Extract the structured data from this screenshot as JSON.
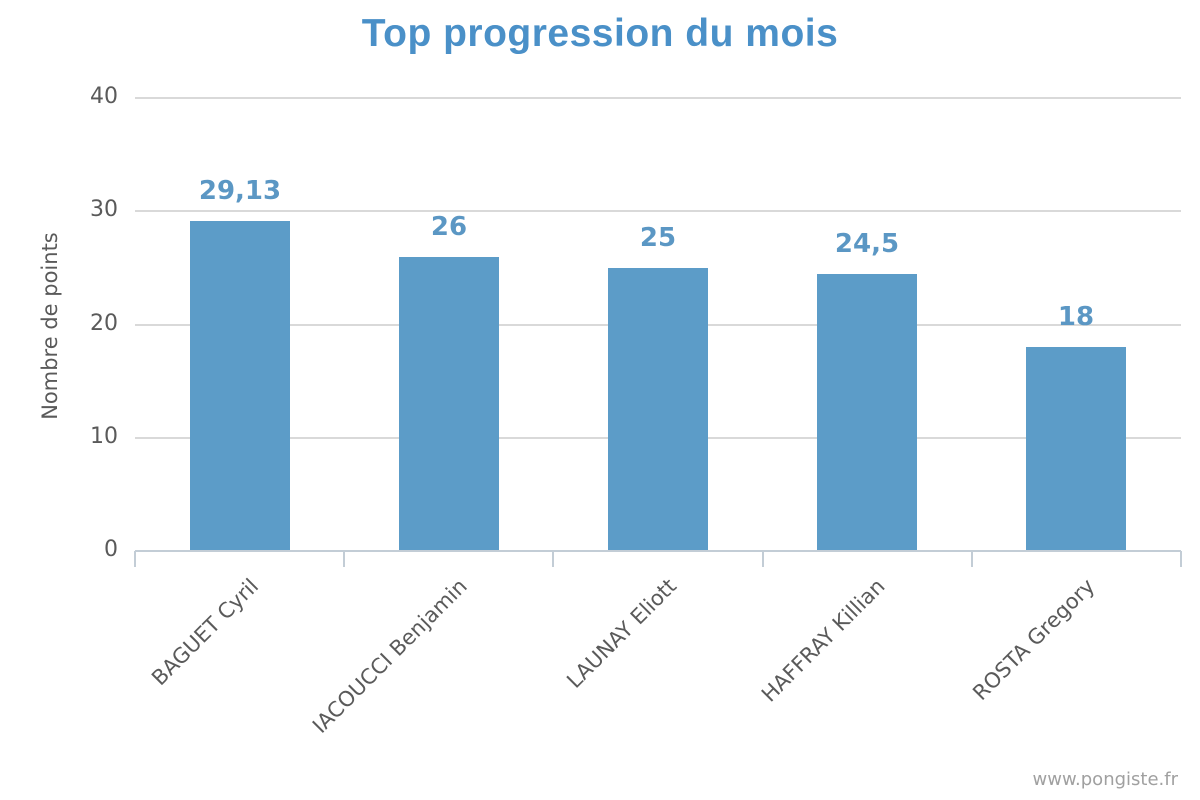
{
  "chart_data": {
    "type": "bar",
    "title": "Top progression du mois",
    "xlabel": "",
    "ylabel": "Nombre de points",
    "categories": [
      "BAGUET Cyril",
      "IACOUCCI Benjamin",
      "LAUNAY Eliott",
      "HAFFRAY Killian",
      "ROSTA Gregory"
    ],
    "values": [
      29.13,
      26,
      25,
      24.5,
      18
    ],
    "value_labels": [
      "29,13",
      "26",
      "25",
      "24,5",
      "18"
    ],
    "yticks": [
      0,
      10,
      20,
      30,
      40
    ],
    "ylim": [
      0,
      40
    ],
    "grid": true,
    "legend": false,
    "colors": {
      "bar": "#5c9cc8",
      "title": "#4a90c8",
      "value_label": "#5b97c4",
      "axis_text": "#5a5a5a",
      "gridline": "#d9d9d9",
      "baseline": "#c3cdd6",
      "watermark": "#a0a0a0"
    }
  },
  "footer": {
    "watermark": "www.pongiste.fr"
  }
}
